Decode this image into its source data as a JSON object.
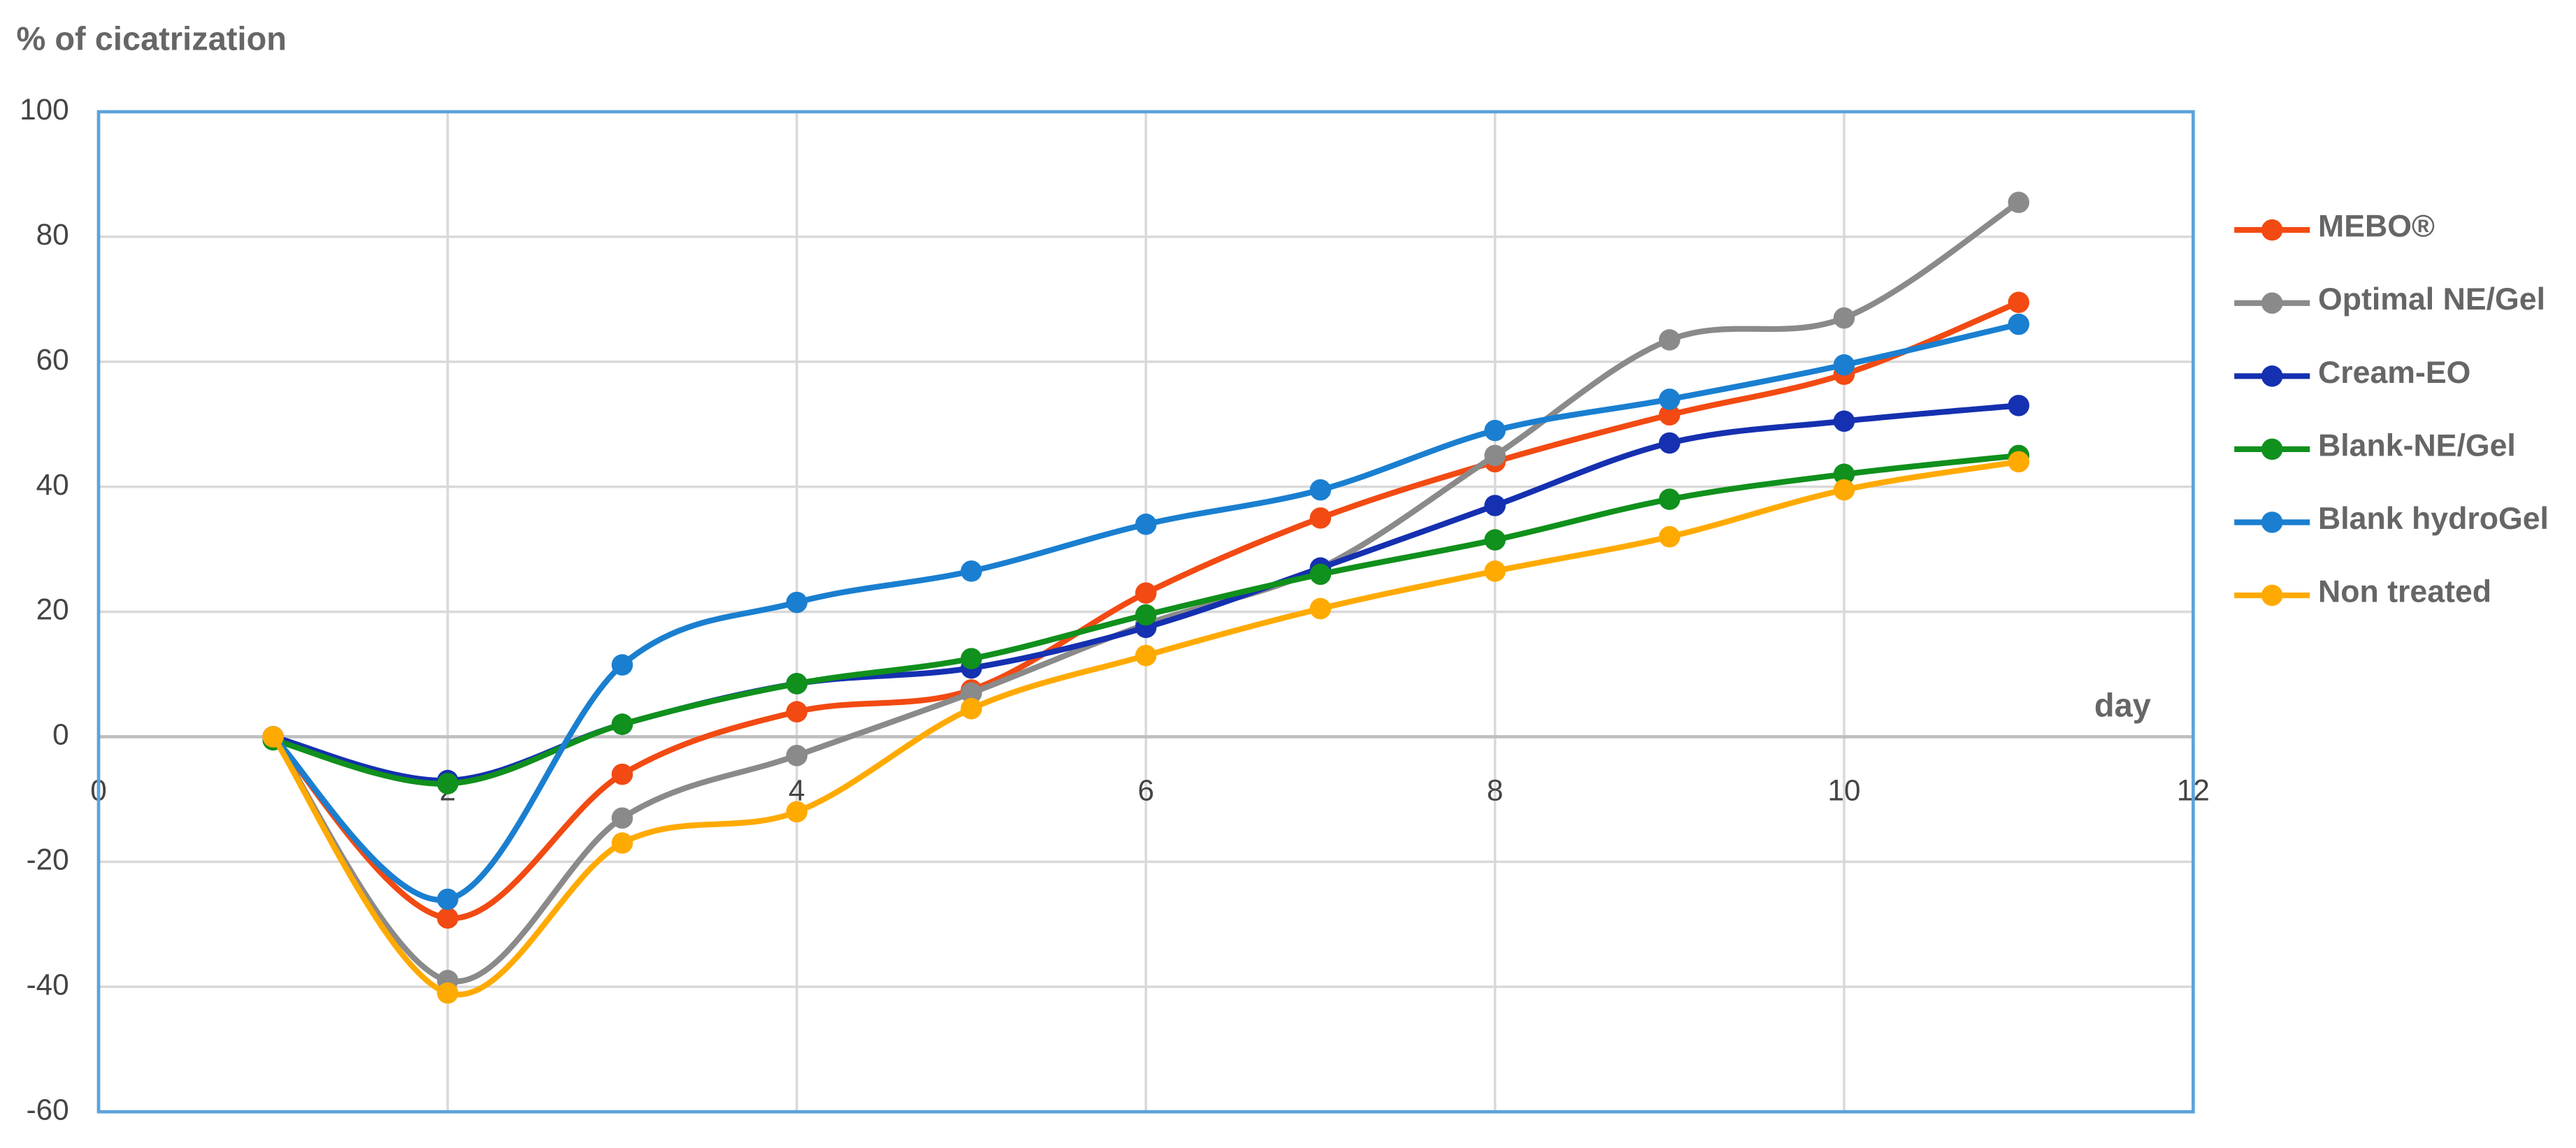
{
  "chart_data": {
    "type": "line",
    "y_label": "% of cicatrization",
    "x_label": "day",
    "x": [
      1,
      2,
      3,
      4,
      5,
      6,
      7,
      8,
      9,
      10,
      11
    ],
    "xlim": [
      0,
      12
    ],
    "xticks": [
      0,
      2,
      4,
      6,
      8,
      10,
      12
    ],
    "ylim": [
      -60,
      100
    ],
    "yticks": [
      -60,
      -40,
      -20,
      0,
      20,
      40,
      60,
      80,
      100
    ],
    "grid": true,
    "smooth": true,
    "legend": "right",
    "series": [
      {
        "name": "MEBO®",
        "color": "#f24a12",
        "values": [
          0,
          -29,
          -6,
          4,
          7.5,
          23,
          35,
          44,
          51.5,
          58,
          69.5
        ]
      },
      {
        "name": "Optimal NE/Gel",
        "color": "#8a8a8a",
        "values": [
          0,
          -39,
          -13,
          -3,
          7,
          18,
          27,
          45,
          63.5,
          67,
          85.5
        ]
      },
      {
        "name": "Cream-EO",
        "color": "#1530b0",
        "values": [
          0,
          -7,
          2,
          8.5,
          11,
          17.5,
          27,
          37,
          47,
          50.5,
          53
        ]
      },
      {
        "name": "Blank-NE/Gel",
        "color": "#10901c",
        "values": [
          -0.5,
          -7.5,
          2,
          8.5,
          12.5,
          19.5,
          26,
          31.5,
          38,
          42,
          45
        ]
      },
      {
        "name": "Blank hydroGel",
        "color": "#1a7fd0",
        "values": [
          0,
          -26,
          11.5,
          21.5,
          26.5,
          34,
          39.5,
          49,
          54,
          59.5,
          66
        ]
      },
      {
        "name": "Non treated",
        "color": "#ffaa00",
        "values": [
          0,
          -41,
          -17,
          -12,
          4.5,
          13,
          20.5,
          26.5,
          32,
          39.5,
          44
        ]
      }
    ]
  }
}
